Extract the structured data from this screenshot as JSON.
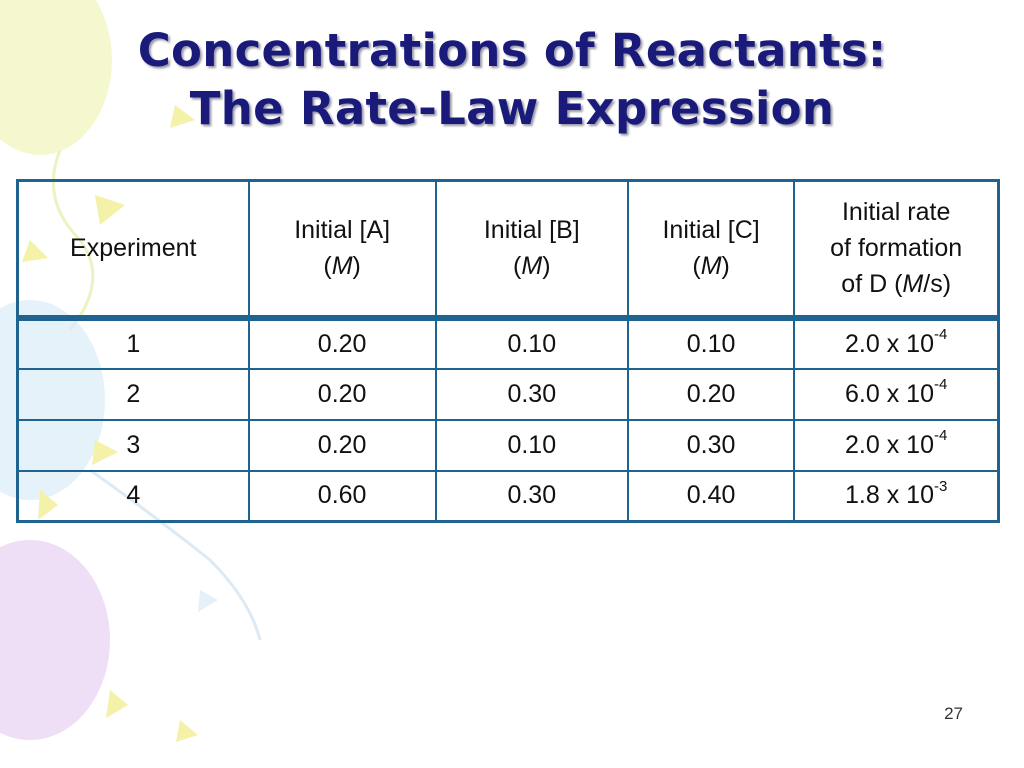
{
  "slide": {
    "title_line1": "Concentrations of Reactants:",
    "title_line2": "The Rate-Law Expression",
    "slide_number": "27"
  },
  "table": {
    "headers": {
      "experiment": "Experiment",
      "a": {
        "line1": "Initial [A]",
        "unit_open": "(",
        "unit": "M",
        "unit_close": ")"
      },
      "b": {
        "line1": "Initial [B]",
        "unit_open": "(",
        "unit": "M",
        "unit_close": ")"
      },
      "c": {
        "line1": "Initial [C]",
        "unit_open": "(",
        "unit": "M",
        "unit_close": ")"
      },
      "rate": {
        "line1": "Initial rate",
        "line2": "of formation",
        "line3_pre": "of D (",
        "line3_unit": "M",
        "line3_post": "/s)"
      }
    },
    "rows": [
      {
        "experiment": "1",
        "a": "0.20",
        "b": "0.10",
        "c": "0.10",
        "rate_mantissa": "2.0 x 10",
        "rate_exp": "-4"
      },
      {
        "experiment": "2",
        "a": "0.20",
        "b": "0.30",
        "c": "0.20",
        "rate_mantissa": "6.0 x 10",
        "rate_exp": "-4"
      },
      {
        "experiment": "3",
        "a": "0.20",
        "b": "0.10",
        "c": "0.30",
        "rate_mantissa": "2.0 x 10",
        "rate_exp": "-4"
      },
      {
        "experiment": "4",
        "a": "0.60",
        "b": "0.30",
        "c": "0.40",
        "rate_mantissa": "1.8 x 10",
        "rate_exp": "-3"
      }
    ]
  },
  "colors": {
    "title": "#1a1a7a",
    "table_border": "#1f6390",
    "balloon_yellow": "#f3f7c6",
    "balloon_blue": "#dcecf8",
    "balloon_purple": "#ecd9f4",
    "confetti_yellow": "#f4f1a8"
  }
}
